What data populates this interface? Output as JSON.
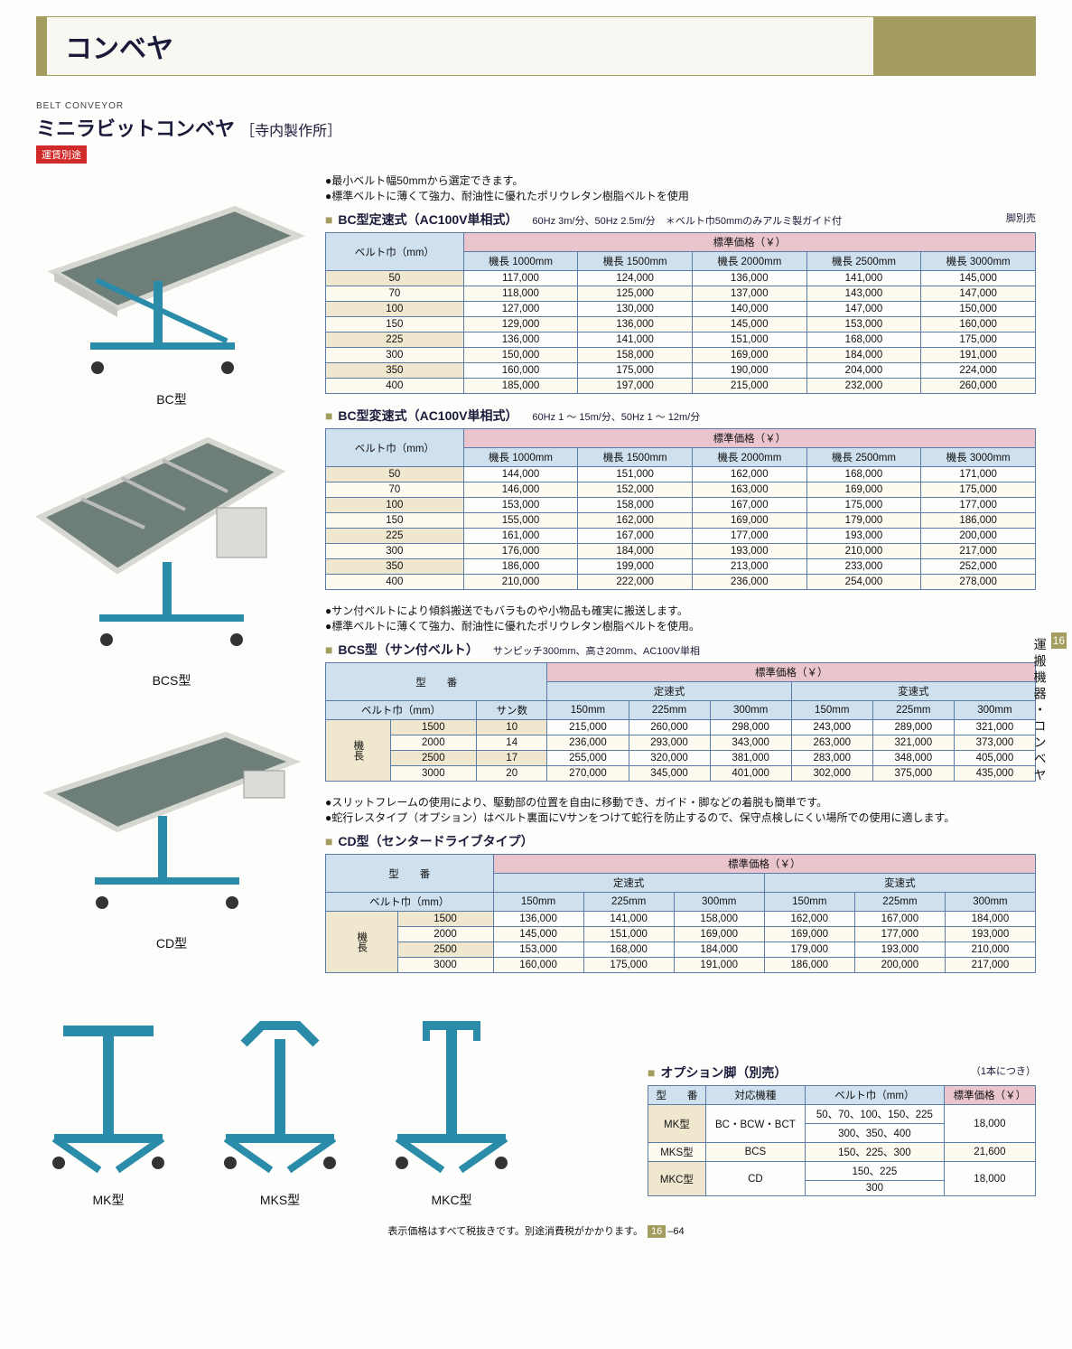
{
  "header": {
    "category": "コンベヤ"
  },
  "product": {
    "eng_label": "BELT CONVEYOR",
    "name": "ミニラビットコンベヤ",
    "maker": "［寺内製作所］",
    "shipping_note": "運賃別途"
  },
  "bullets_top": [
    "最小ベルト幅50mmから選定できます。",
    "標準ベルトに薄くて強力、耐油性に優れたポリウレタン樹脂ベルトを使用"
  ],
  "bullets_bcs": [
    "サン付ベルトにより傾斜搬送でもバラものや小物品も確実に搬送します。",
    "標準ベルトに薄くて強力、耐油性に優れたポリウレタン樹脂ベルトを使用。"
  ],
  "bullets_cd": [
    "スリットフレームの使用により、駆動部の位置を自由に移動でき、ガイド・脚などの着脱も簡単です。",
    "蛇行レスタイプ（オプション）はベルト裏面にVサンをつけて蛇行を防止するので、保守点検しにくい場所での使用に適します。"
  ],
  "images": {
    "bc_caption": "BC型",
    "bcs_caption": "BCS型",
    "cd_caption": "CD型",
    "mk_caption": "MK型",
    "mks_caption": "MKS型",
    "mkc_caption": "MKC型"
  },
  "sections": {
    "bc_const": {
      "title": "BC型定速式（AC100V単相式）",
      "sub": "60Hz 3m/分、50Hz 2.5m/分　＊ベルト巾50mmのみアルミ製ガイド付",
      "right_note": "脚別売"
    },
    "bc_var": {
      "title": "BC型変速式（AC100V単相式）",
      "sub": "60Hz 1 〜 15m/分、50Hz 1 〜 12m/分"
    },
    "bcs": {
      "title": "BCS型（サン付ベルト）",
      "sub": "サンピッチ300mm、高さ20mm、AC100V単相"
    },
    "cd": {
      "title": "CD型（センタードライブタイプ）"
    },
    "option": {
      "title": "オプション脚（別売）",
      "note": "（1本につき）"
    }
  },
  "bc_table": {
    "belt_header": "ベルト巾（mm）",
    "price_header": "標準価格（￥）",
    "len_cols": [
      "機長 1000mm",
      "機長 1500mm",
      "機長 2000mm",
      "機長 2500mm",
      "機長 3000mm"
    ],
    "const_rows": [
      [
        "50",
        "117,000",
        "124,000",
        "136,000",
        "141,000",
        "145,000"
      ],
      [
        "70",
        "118,000",
        "125,000",
        "137,000",
        "143,000",
        "147,000"
      ],
      [
        "100",
        "127,000",
        "130,000",
        "140,000",
        "147,000",
        "150,000"
      ],
      [
        "150",
        "129,000",
        "136,000",
        "145,000",
        "153,000",
        "160,000"
      ],
      [
        "225",
        "136,000",
        "141,000",
        "151,000",
        "168,000",
        "175,000"
      ],
      [
        "300",
        "150,000",
        "158,000",
        "169,000",
        "184,000",
        "191,000"
      ],
      [
        "350",
        "160,000",
        "175,000",
        "190,000",
        "204,000",
        "224,000"
      ],
      [
        "400",
        "185,000",
        "197,000",
        "215,000",
        "232,000",
        "260,000"
      ]
    ],
    "var_rows": [
      [
        "50",
        "144,000",
        "151,000",
        "162,000",
        "168,000",
        "171,000"
      ],
      [
        "70",
        "146,000",
        "152,000",
        "163,000",
        "169,000",
        "175,000"
      ],
      [
        "100",
        "153,000",
        "158,000",
        "167,000",
        "175,000",
        "177,000"
      ],
      [
        "150",
        "155,000",
        "162,000",
        "169,000",
        "179,000",
        "186,000"
      ],
      [
        "225",
        "161,000",
        "167,000",
        "177,000",
        "193,000",
        "200,000"
      ],
      [
        "300",
        "176,000",
        "184,000",
        "193,000",
        "210,000",
        "217,000"
      ],
      [
        "350",
        "186,000",
        "199,000",
        "213,000",
        "233,000",
        "252,000"
      ],
      [
        "400",
        "210,000",
        "222,000",
        "236,000",
        "254,000",
        "278,000"
      ]
    ]
  },
  "bcs_table": {
    "model_header": "型　　番",
    "price_header": "標準価格（￥）",
    "const_label": "定速式",
    "var_label": "変速式",
    "belt_header": "ベルト巾（mm）",
    "san_header": "サン数",
    "len_label": "機長",
    "width_cols": [
      "150mm",
      "225mm",
      "300mm",
      "150mm",
      "225mm",
      "300mm"
    ],
    "rows": [
      [
        "1500",
        "10",
        "215,000",
        "260,000",
        "298,000",
        "243,000",
        "289,000",
        "321,000"
      ],
      [
        "2000",
        "14",
        "236,000",
        "293,000",
        "343,000",
        "263,000",
        "321,000",
        "373,000"
      ],
      [
        "2500",
        "17",
        "255,000",
        "320,000",
        "381,000",
        "283,000",
        "348,000",
        "405,000"
      ],
      [
        "3000",
        "20",
        "270,000",
        "345,000",
        "401,000",
        "302,000",
        "375,000",
        "435,000"
      ]
    ]
  },
  "cd_table": {
    "model_header": "型　　番",
    "price_header": "標準価格（￥）",
    "const_label": "定速式",
    "var_label": "変速式",
    "belt_header": "ベルト巾（mm）",
    "len_label": "機長",
    "width_cols": [
      "150mm",
      "225mm",
      "300mm",
      "150mm",
      "225mm",
      "300mm"
    ],
    "rows": [
      [
        "1500",
        "136,000",
        "141,000",
        "158,000",
        "162,000",
        "167,000",
        "184,000"
      ],
      [
        "2000",
        "145,000",
        "151,000",
        "169,000",
        "169,000",
        "177,000",
        "193,000"
      ],
      [
        "2500",
        "153,000",
        "168,000",
        "184,000",
        "179,000",
        "193,000",
        "210,000"
      ],
      [
        "3000",
        "160,000",
        "175,000",
        "191,000",
        "186,000",
        "200,000",
        "217,000"
      ]
    ]
  },
  "option_table": {
    "cols": [
      "型　　番",
      "対応機種",
      "ベルト巾（mm）",
      "標準価格（￥）"
    ],
    "rows": [
      {
        "model": "MK型",
        "target": "BC・BCW・BCT",
        "belts": [
          "50、70、100、150、225",
          "300、350、400"
        ],
        "price": "18,000"
      },
      {
        "model": "MKS型",
        "target": "BCS",
        "belts": [
          "150、225、300"
        ],
        "price": "21,600"
      },
      {
        "model": "MKC型",
        "target": "CD",
        "belts": [
          "150、225",
          "300"
        ],
        "price": "18,000"
      }
    ]
  },
  "sidebar": {
    "num": "16",
    "text": "運搬機器・コンベヤ"
  },
  "footer": {
    "text": "表示価格はすべて税抜きです。別途消費税がかかります。",
    "section": "16",
    "page": "64"
  },
  "style": {
    "colors": {
      "accent": "#a39d5f",
      "navy": "#1a1a3a",
      "th_blue": "#cfe0ee",
      "th_pink": "#eac5ce",
      "th_tan": "#efe8cf",
      "border": "#5a7ba8",
      "row_alt": "#fdfaf0",
      "badge": "#d02a2a",
      "conveyor_teal": "#2a8ca8",
      "conveyor_belt": "#6d7f78"
    }
  }
}
